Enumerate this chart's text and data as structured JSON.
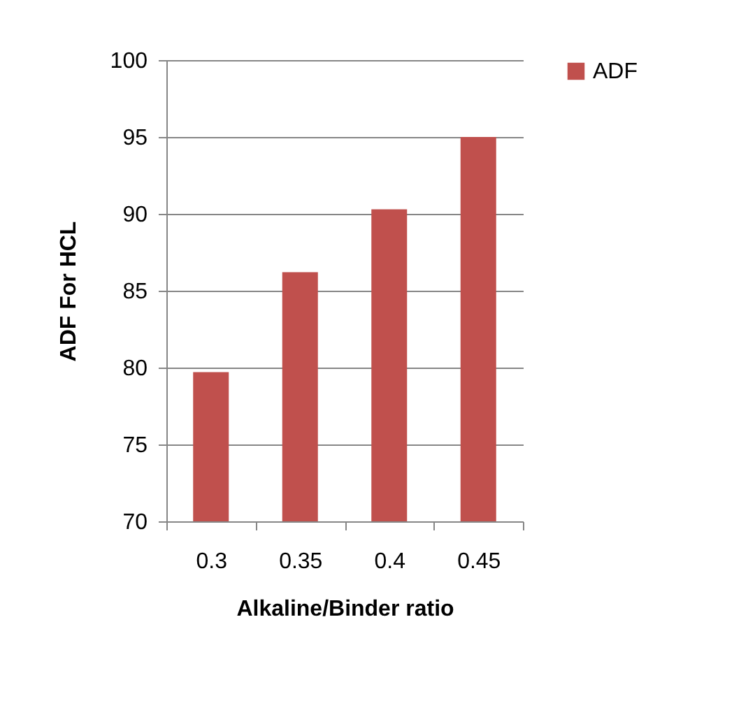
{
  "chart_data": {
    "type": "bar",
    "xlabel": "Alkaline/Binder ratio",
    "ylabel": "ADF For HCL",
    "categories": [
      "0.3",
      "0.35",
      "0.4",
      "0.45"
    ],
    "series": [
      {
        "name": "ADF",
        "color": "#c0504d",
        "values": [
          79.7,
          86.2,
          90.3,
          95.0
        ]
      }
    ],
    "ylim": [
      70,
      100
    ],
    "yticks": [
      70,
      75,
      80,
      85,
      90,
      95,
      100
    ],
    "grid": "y",
    "legend": "right"
  }
}
